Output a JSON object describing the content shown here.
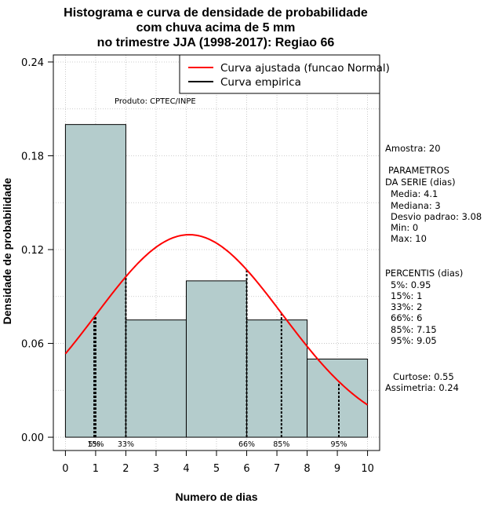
{
  "chart_data": {
    "type": "bar",
    "title_lines": [
      "Histograma e curva de densidade de probabilidade",
      "com chuva acima de 5 mm",
      "no trimestre JJA (1998-2017): Regiao 66"
    ],
    "xlabel": "Numero de dias",
    "ylabel": "Densidade de probabilidade",
    "xlim": [
      -0.4,
      10.4
    ],
    "ylim": [
      -0.0085,
      0.2445
    ],
    "x_ticks": [
      "0",
      "1",
      "2",
      "3",
      "4",
      "5",
      "6",
      "7",
      "8",
      "9",
      "10"
    ],
    "y_ticks": [
      "0.00",
      "0.06",
      "0.12",
      "0.18",
      "0.24"
    ],
    "grid": true,
    "histogram": {
      "bins": [
        {
          "from": 0,
          "to": 2,
          "density": 0.2
        },
        {
          "from": 2,
          "to": 4,
          "density": 0.075
        },
        {
          "from": 4,
          "to": 6,
          "density": 0.1
        },
        {
          "from": 6,
          "to": 8,
          "density": 0.075
        },
        {
          "from": 8,
          "to": 10,
          "density": 0.05
        }
      ],
      "fill_color": "#b4cccc",
      "edge_color": "#000000"
    },
    "normal_curve": {
      "mean": 4.1,
      "sd": 3.08,
      "color": "#ff0000"
    },
    "percentile_lines": [
      {
        "label": "5%",
        "x": 0.95
      },
      {
        "label": "15%",
        "x": 1
      },
      {
        "label": "33%",
        "x": 2
      },
      {
        "label": "66%",
        "x": 6
      },
      {
        "label": "85%",
        "x": 7.15
      },
      {
        "label": "95%",
        "x": 9.05
      }
    ],
    "legend": {
      "position": "top-right",
      "items": [
        {
          "label": "Curva ajustada (funcao Normal)",
          "color": "#ff0000"
        },
        {
          "label": "Curva empirica",
          "color": "#000000"
        }
      ]
    },
    "annotation": "Produto: CPTEC/INPE"
  },
  "stats": {
    "amostra": "Amostra: 20",
    "param_title_1": "PARAMETROS",
    "param_title_2": "DA SERIE (dias)",
    "media": "Media: 4.1",
    "mediana": "Mediana: 3",
    "desvio": "Desvio padrao: 3.08",
    "min": "Min: 0",
    "max": "Max: 10",
    "pct_title": "PERCENTIS (dias)",
    "p5": "5%: 0.95",
    "p15": "15%: 1",
    "p33": "33%: 2",
    "p66": "66%: 6",
    "p85": "85%: 7.15",
    "p95": "95%: 9.05",
    "curtose": "Curtose: 0.55",
    "assimetria": "Assimetria: 0.24"
  }
}
